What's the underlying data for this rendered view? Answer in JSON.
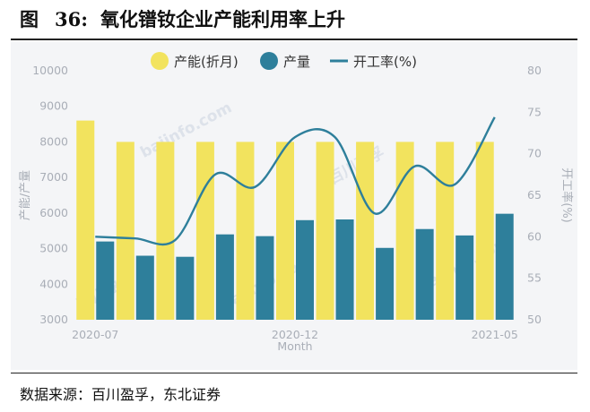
{
  "figure": {
    "label": "图",
    "number": "36:",
    "title": "氧化镨钕企业产能利用率上升",
    "source": "数据来源：百川盈孚，东北证券"
  },
  "chart_data": {
    "type": "bar+line",
    "title": "氧化镨钕企业产能利用率上升",
    "xlabel": "Month",
    "ylabel_left": "产能/产量",
    "ylabel_right": "开工率(%)",
    "ylim_left": [
      3000,
      10000
    ],
    "yticks_left": [
      3000,
      4000,
      5000,
      6000,
      7000,
      8000,
      9000,
      10000
    ],
    "ylim_right": [
      50,
      80
    ],
    "yticks_right": [
      50,
      55,
      60,
      65,
      70,
      75,
      80
    ],
    "categories": [
      "2020-07",
      "2020-08",
      "2020-09",
      "2020-10",
      "2020-11",
      "2020-12",
      "2021-01",
      "2021-02",
      "2021-03",
      "2021-04",
      "2021-05"
    ],
    "x_tick_labels": [
      {
        "index": 0,
        "label": "2020-07"
      },
      {
        "index": 5,
        "label": "2020-12"
      },
      {
        "index": 10,
        "label": "2021-05"
      }
    ],
    "legend_position": "top",
    "series": [
      {
        "name": "产能(折月)",
        "kind": "bar",
        "axis": "left",
        "color": "#f2e35e",
        "values": [
          8600,
          8000,
          8000,
          8000,
          8000,
          8000,
          8000,
          8000,
          8000,
          8000,
          8000
        ]
      },
      {
        "name": "产量",
        "kind": "bar",
        "axis": "left",
        "color": "#2e7f9b",
        "values": [
          5200,
          4800,
          4770,
          5400,
          5350,
          5800,
          5820,
          5020,
          5550,
          5370,
          5980
        ]
      },
      {
        "name": "开工率(%)",
        "kind": "line",
        "axis": "right",
        "color": "#2e7f9b",
        "values": [
          60,
          59.8,
          59.6,
          67.5,
          66,
          72,
          72,
          62.8,
          68.5,
          66.3,
          74.4
        ]
      }
    ],
    "watermark": "百川盈孚 baiinfo.com"
  }
}
